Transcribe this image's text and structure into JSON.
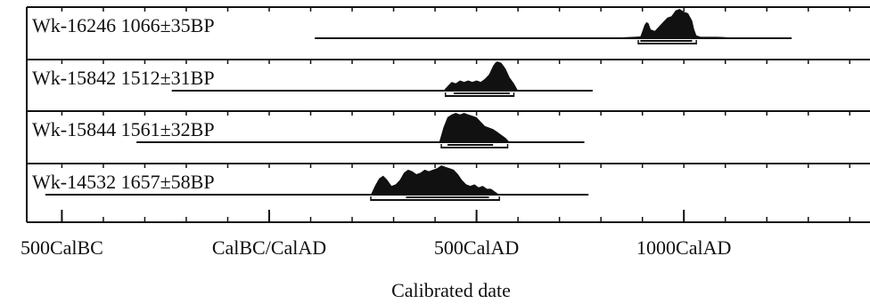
{
  "chart_data": {
    "type": "radiocarbon-calibration",
    "title": "",
    "xlabel": "Calibrated date",
    "ylabel": "",
    "x_unit": "calendar year (negative = BC)",
    "xlim": [
      -500,
      1400
    ],
    "x_ticks": [
      {
        "value": -500,
        "label": "500CalBC"
      },
      {
        "value": 0,
        "label": "CalBC/CalAD"
      },
      {
        "value": 500,
        "label": "500CalAD"
      },
      {
        "value": 1000,
        "label": "1000CalAD"
      }
    ],
    "minor_tick_step": 100,
    "colors": {
      "distribution": "#111111",
      "frame": "#111111",
      "background": "#ffffff"
    },
    "samples": [
      {
        "lab_code": "Wk-16246",
        "age": "1066±35BP",
        "line_range": [
          110,
          1260
        ],
        "range_1sigma": [
          895,
          1020
        ],
        "range_2sigma": [
          890,
          1030
        ],
        "distribution": [
          [
            810,
            0
          ],
          [
            850,
            0.03
          ],
          [
            880,
            0.05
          ],
          [
            895,
            0.06
          ],
          [
            900,
            0.25
          ],
          [
            905,
            0.45
          ],
          [
            910,
            0.55
          ],
          [
            915,
            0.5
          ],
          [
            920,
            0.3
          ],
          [
            930,
            0.25
          ],
          [
            940,
            0.4
          ],
          [
            950,
            0.55
          ],
          [
            960,
            0.7
          ],
          [
            970,
            0.75
          ],
          [
            980,
            0.95
          ],
          [
            990,
            1.0
          ],
          [
            1000,
            0.9
          ],
          [
            1010,
            0.85
          ],
          [
            1020,
            0.6
          ],
          [
            1025,
            0.3
          ],
          [
            1030,
            0.1
          ],
          [
            1040,
            0.05
          ],
          [
            1080,
            0.05
          ],
          [
            1100,
            0.04
          ],
          [
            1110,
            0
          ]
        ]
      },
      {
        "lab_code": "Wk-15842",
        "age": "1512±31BP",
        "line_range": [
          -235,
          780
        ],
        "range_1sigma": [
          445,
          580
        ],
        "range_2sigma": [
          425,
          590
        ],
        "distribution": [
          [
            420,
            0
          ],
          [
            430,
            0.15
          ],
          [
            440,
            0.3
          ],
          [
            450,
            0.25
          ],
          [
            460,
            0.35
          ],
          [
            470,
            0.3
          ],
          [
            480,
            0.35
          ],
          [
            490,
            0.3
          ],
          [
            500,
            0.35
          ],
          [
            510,
            0.3
          ],
          [
            520,
            0.4
          ],
          [
            530,
            0.55
          ],
          [
            540,
            0.85
          ],
          [
            545,
            0.95
          ],
          [
            550,
            1.0
          ],
          [
            560,
            0.95
          ],
          [
            570,
            0.75
          ],
          [
            580,
            0.45
          ],
          [
            590,
            0.25
          ],
          [
            600,
            0
          ]
        ]
      },
      {
        "lab_code": "Wk-15844",
        "age": "1561±32BP",
        "line_range": [
          -320,
          760
        ],
        "range_1sigma": [
          430,
          540
        ],
        "range_2sigma": [
          415,
          575
        ],
        "distribution": [
          [
            410,
            0
          ],
          [
            420,
            0.5
          ],
          [
            430,
            0.85
          ],
          [
            440,
            0.95
          ],
          [
            450,
            1.0
          ],
          [
            460,
            0.95
          ],
          [
            470,
            1.0
          ],
          [
            480,
            0.95
          ],
          [
            490,
            0.9
          ],
          [
            500,
            0.85
          ],
          [
            510,
            0.7
          ],
          [
            520,
            0.55
          ],
          [
            530,
            0.5
          ],
          [
            540,
            0.45
          ],
          [
            550,
            0.35
          ],
          [
            560,
            0.25
          ],
          [
            570,
            0.15
          ],
          [
            580,
            0
          ]
        ]
      },
      {
        "lab_code": "Wk-14532",
        "age": "1657±58BP",
        "line_range": [
          -540,
          770
        ],
        "range_1sigma": [
          330,
          530
        ],
        "range_2sigma": [
          245,
          555
        ],
        "distribution": [
          [
            245,
            0
          ],
          [
            255,
            0.3
          ],
          [
            265,
            0.55
          ],
          [
            275,
            0.65
          ],
          [
            285,
            0.5
          ],
          [
            295,
            0.3
          ],
          [
            305,
            0.35
          ],
          [
            315,
            0.5
          ],
          [
            325,
            0.75
          ],
          [
            335,
            0.85
          ],
          [
            345,
            0.8
          ],
          [
            355,
            0.7
          ],
          [
            365,
            0.75
          ],
          [
            375,
            0.85
          ],
          [
            385,
            0.8
          ],
          [
            395,
            0.85
          ],
          [
            405,
            0.9
          ],
          [
            415,
            1.0
          ],
          [
            425,
            0.95
          ],
          [
            435,
            0.9
          ],
          [
            445,
            0.85
          ],
          [
            455,
            0.7
          ],
          [
            465,
            0.5
          ],
          [
            475,
            0.35
          ],
          [
            485,
            0.3
          ],
          [
            495,
            0.35
          ],
          [
            505,
            0.25
          ],
          [
            515,
            0.3
          ],
          [
            525,
            0.2
          ],
          [
            535,
            0.2
          ],
          [
            545,
            0.1
          ],
          [
            555,
            0
          ]
        ]
      }
    ]
  }
}
